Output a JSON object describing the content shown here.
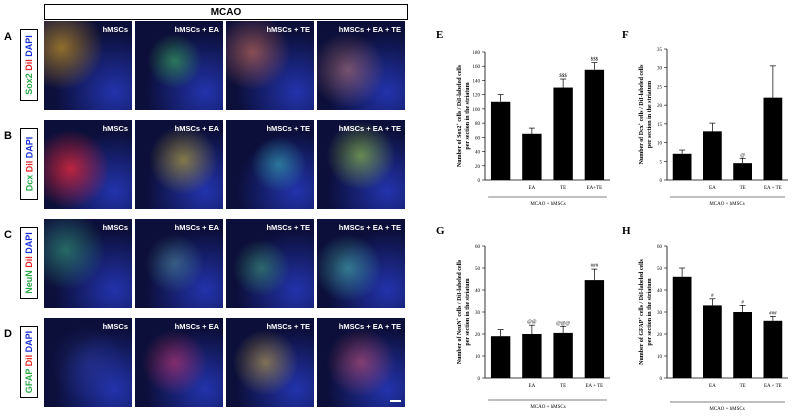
{
  "header": {
    "condition": "MCAO"
  },
  "rows": [
    {
      "letter": "A",
      "marker": "Sox2",
      "dye": "DiI",
      "stain": "DAPI",
      "marker_color": "#2aa84a"
    },
    {
      "letter": "B",
      "marker": "Dcx",
      "dye": "DiI",
      "stain": "DAPI",
      "marker_color": "#2aa84a"
    },
    {
      "letter": "C",
      "marker": "NeuN",
      "dye": "DiI",
      "stain": "DAPI",
      "marker_color": "#2aa84a"
    },
    {
      "letter": "D",
      "marker": "GFAP",
      "dye": "DiI",
      "stain": "DAPI",
      "marker_color": "#2aa84a"
    }
  ],
  "columns": [
    "hMSCs",
    "hMSCs + EA",
    "hMSCs + TE",
    "hMSCs + EA + TE"
  ],
  "colors": {
    "dye": "#e0282a",
    "stain": "#1a2fd6",
    "bar": "#000000"
  },
  "chart_data": [
    {
      "panel": "E",
      "type": "bar",
      "categories": [
        "",
        "EA",
        "TE",
        "EA+TE"
      ],
      "values": [
        110,
        65,
        130,
        155
      ],
      "errors": [
        10,
        8,
        12,
        10
      ],
      "annotations": [
        "",
        "",
        "$$$",
        "$$$"
      ],
      "ylabel_parts": [
        "Number of Sox2",
        "+",
        " cells / DiI-labeled cells",
        "per section in the striatum"
      ],
      "yticks": [
        0,
        20,
        40,
        60,
        80,
        100,
        120,
        140,
        160,
        180
      ],
      "ylim": [
        0,
        180
      ],
      "group_label": "MCAO + hMSCs"
    },
    {
      "panel": "F",
      "type": "bar",
      "categories": [
        "",
        "EA",
        "TE",
        "EA + TE"
      ],
      "values": [
        7,
        13,
        4.5,
        22
      ],
      "errors": [
        1,
        2.2,
        1.3,
        8.5
      ],
      "annotations": [
        "",
        "",
        "@",
        ""
      ],
      "ylabel_parts": [
        "Number of Dcx",
        "+",
        " cells / DiI-labeled cells",
        "per section in the striatum"
      ],
      "yticks": [
        0,
        5,
        10,
        15,
        20,
        25,
        30,
        35
      ],
      "ylim": [
        0,
        35
      ],
      "group_label": "MCAO + hMSCs"
    },
    {
      "panel": "G",
      "type": "bar",
      "categories": [
        "",
        "EA",
        "TE",
        "EA + TE"
      ],
      "values": [
        19,
        20,
        20.5,
        44.5
      ],
      "errors": [
        3,
        4,
        3,
        5
      ],
      "annotations": [
        "",
        "@@",
        "@@@",
        "###"
      ],
      "ylabel_parts": [
        "Number of NeuN",
        "+",
        " cells / DiI-labeled cells",
        "per section in the striatum"
      ],
      "yticks": [
        0,
        10,
        20,
        30,
        40,
        50,
        60
      ],
      "ylim": [
        0,
        60
      ],
      "group_label": "MCAO + hMSCs"
    },
    {
      "panel": "H",
      "type": "bar",
      "categories": [
        "",
        "EA",
        "TE",
        "EA + TE"
      ],
      "values": [
        46,
        33,
        30,
        26
      ],
      "errors": [
        4,
        3,
        3,
        2
      ],
      "annotations": [
        "",
        "#",
        "#",
        "###"
      ],
      "ylabel_parts": [
        "Number of GFAP",
        "+",
        " cells / DiI-labeled cells",
        "per section in the striatum"
      ],
      "yticks": [
        0,
        10,
        20,
        30,
        40,
        50,
        60
      ],
      "ylim": [
        0,
        60
      ],
      "group_label": "MCAO + hMSCs"
    }
  ]
}
